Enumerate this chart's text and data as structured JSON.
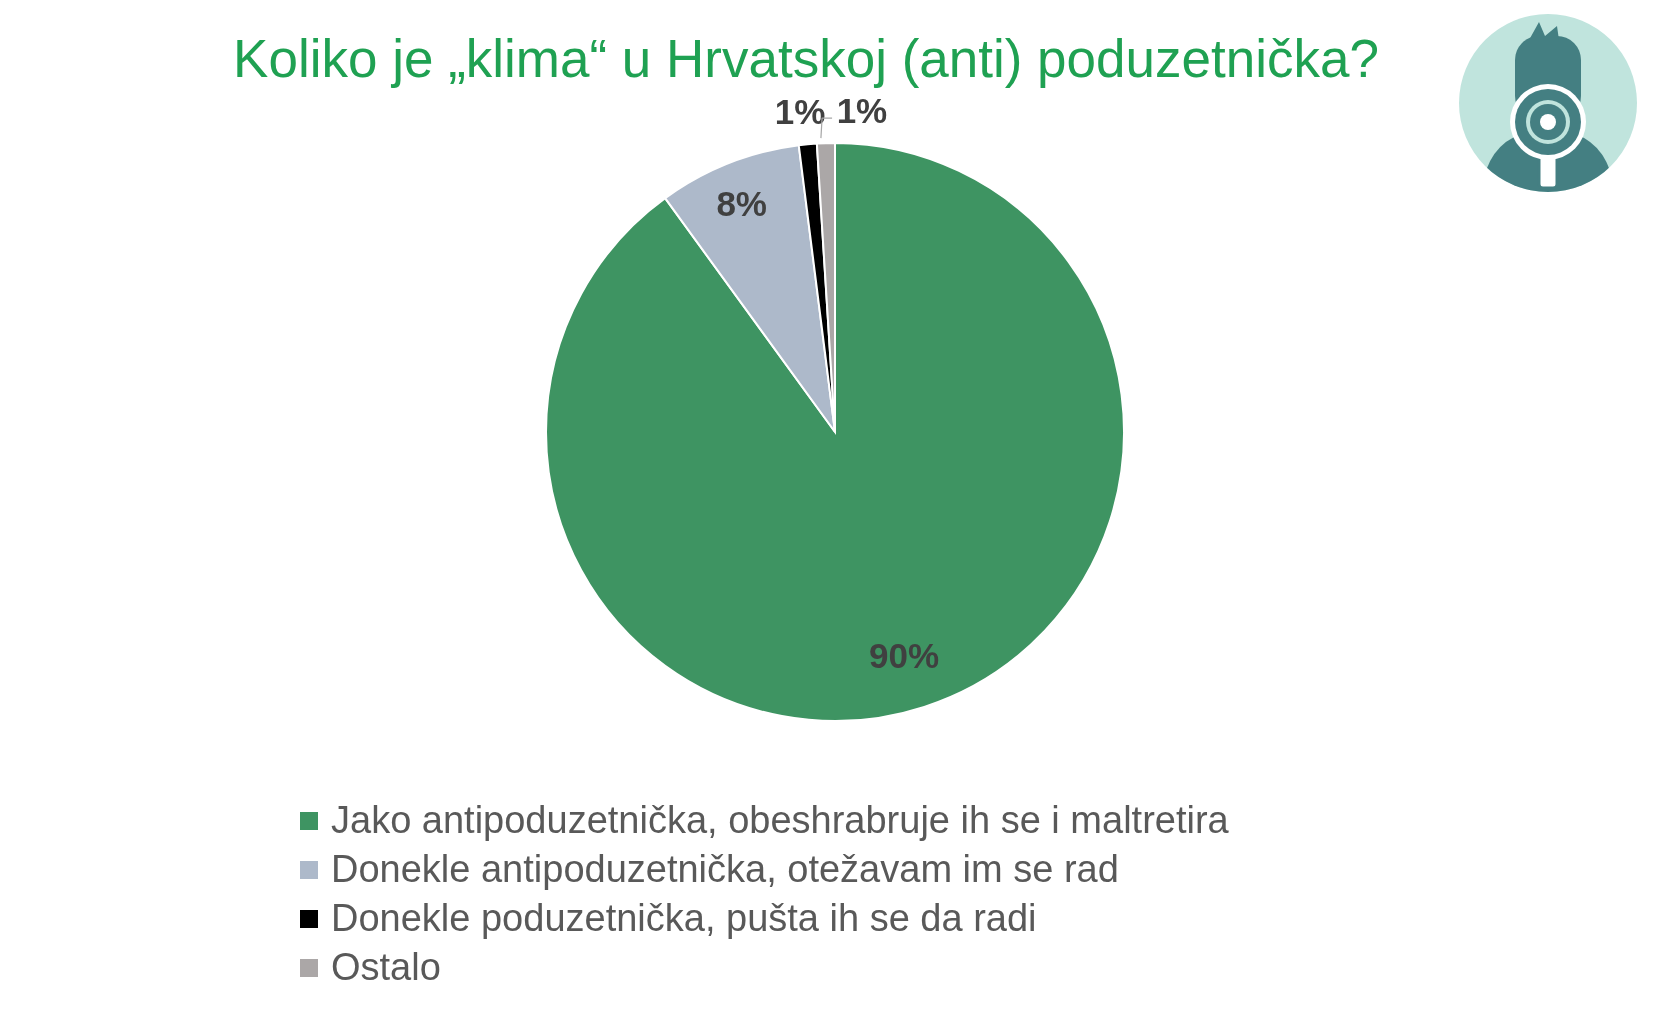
{
  "chart_data": {
    "type": "pie",
    "title": "Koliko je „klima“ u Hrvatskoj (anti) poduzetnička?",
    "categories": [
      "Jako antipoduzetnička, obeshrabruje ih se i maltretira",
      "Donekle antipoduzetnička, otežavam im se rad",
      "Donekle poduzetnička, pušta ih se da radi",
      "Ostalo"
    ],
    "values": [
      90,
      8,
      1,
      1
    ],
    "colors": [
      "#3e9462",
      "#adb9ca",
      "#000000",
      "#aba7a7"
    ],
    "value_labels": [
      "90%",
      "8%",
      "1%",
      "1%"
    ],
    "legend": "bottom"
  }
}
